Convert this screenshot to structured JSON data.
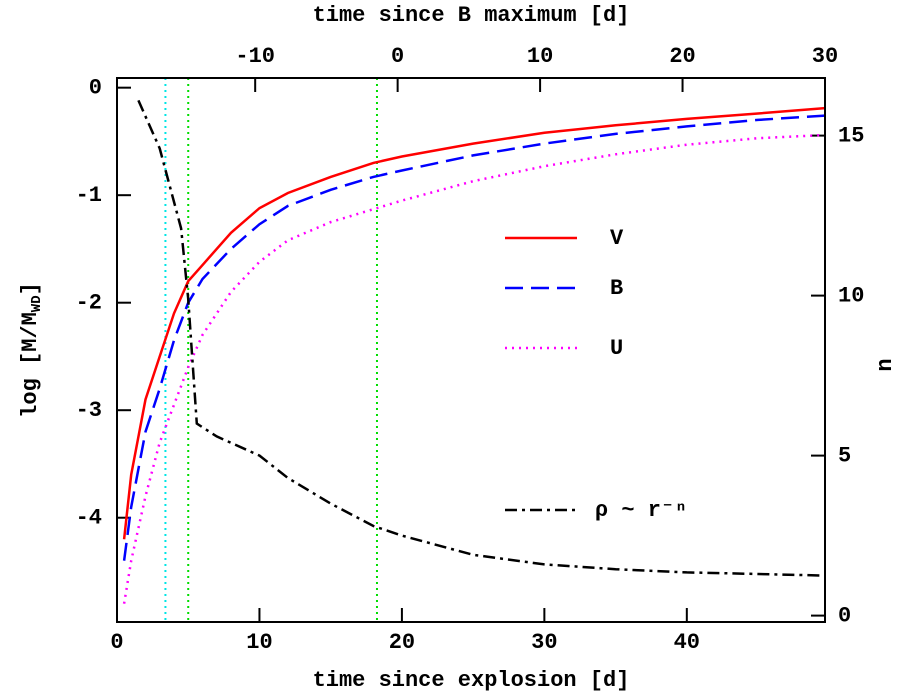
{
  "chart_data": {
    "type": "line",
    "x2label": "time since B maximum [d]",
    "xlabel": "time since explosion [d]",
    "ylabel": {
      "text": "log [M/M",
      "sub": "WD",
      "end": "]"
    },
    "y2label": "n",
    "xlim": [
      0,
      49.7
    ],
    "xticks": [
      0,
      10,
      20,
      30,
      40
    ],
    "x2lim": [
      -19.7,
      30
    ],
    "x2ticks": [
      -10,
      0,
      10,
      20,
      30
    ],
    "ylim": [
      -4.97,
      0.09
    ],
    "yticks": [
      -4,
      -3,
      -2,
      -1,
      0
    ],
    "y2lim": [
      -0.2,
      16.8
    ],
    "y2ticks": [
      0,
      5,
      10,
      15
    ],
    "vlines": [
      {
        "x": 3.4,
        "color": "#00e5e5"
      },
      {
        "x": 5.0,
        "color": "#00dd00"
      },
      {
        "x": 18.25,
        "color": "#00dd00"
      }
    ],
    "series": [
      {
        "name": "V",
        "color": "#ff0000",
        "style": "solid",
        "x": [
          0.5,
          1,
          2,
          3,
          4,
          5,
          6,
          7,
          8,
          10,
          12,
          15,
          18,
          20,
          25,
          30,
          35,
          40,
          45,
          49.7
        ],
        "values": [
          -4.2,
          -3.6,
          -2.9,
          -2.5,
          -2.1,
          -1.8,
          -1.65,
          -1.5,
          -1.35,
          -1.12,
          -0.98,
          -0.83,
          -0.7,
          -0.64,
          -0.52,
          -0.42,
          -0.35,
          -0.29,
          -0.24,
          -0.19
        ]
      },
      {
        "name": "B",
        "color": "#0000ff",
        "style": "dashed",
        "x": [
          0.5,
          1,
          2,
          3,
          4,
          5,
          6,
          8,
          10,
          12,
          15,
          18,
          20,
          25,
          30,
          35,
          40,
          45,
          49.7
        ],
        "values": [
          -4.4,
          -3.9,
          -3.2,
          -2.8,
          -2.35,
          -2.0,
          -1.78,
          -1.5,
          -1.27,
          -1.1,
          -0.95,
          -0.83,
          -0.77,
          -0.63,
          -0.52,
          -0.43,
          -0.36,
          -0.3,
          -0.26
        ]
      },
      {
        "name": "U",
        "color": "#ff00ff",
        "style": "dotted",
        "x": [
          0.5,
          1,
          2,
          3,
          4,
          5,
          6,
          8,
          10,
          12,
          15,
          18,
          20,
          25,
          30,
          35,
          40,
          45,
          49.7
        ],
        "values": [
          -4.8,
          -4.4,
          -3.8,
          -3.3,
          -2.95,
          -2.6,
          -2.3,
          -1.9,
          -1.62,
          -1.42,
          -1.25,
          -1.13,
          -1.05,
          -0.87,
          -0.73,
          -0.62,
          -0.53,
          -0.47,
          -0.44
        ]
      },
      {
        "name": "ρ ~ r⁻ⁿ",
        "color": "#000000",
        "style": "dashdot",
        "axis": "y2",
        "x": [
          1.5,
          3,
          4.5,
          5,
          5.6,
          7,
          10,
          12,
          15,
          18,
          20,
          25,
          30,
          35,
          40,
          45,
          49.7
        ],
        "values": [
          16.1,
          14.6,
          12.1,
          9.9,
          6.0,
          5.6,
          5.0,
          4.3,
          3.5,
          2.8,
          2.5,
          1.9,
          1.6,
          1.45,
          1.35,
          1.3,
          1.25
        ]
      }
    ]
  }
}
